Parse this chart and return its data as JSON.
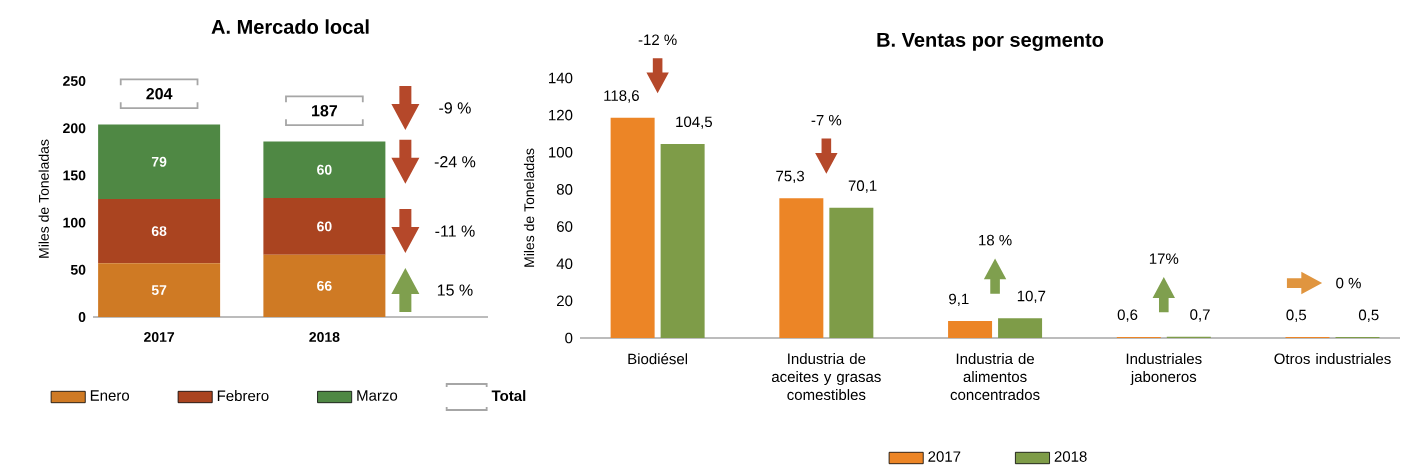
{
  "chart_data": [
    {
      "type": "bar",
      "title": "A. Mercado local",
      "ylabel": "Miles de Toneladas",
      "categories": [
        "2017",
        "2018"
      ],
      "stacked": true,
      "series": [
        {
          "name": "Enero",
          "color": "#CF7A24",
          "values": [
            57,
            66
          ]
        },
        {
          "name": "Febrero",
          "color": "#AA4420",
          "values": [
            68,
            60
          ]
        },
        {
          "name": "Marzo",
          "color": "#4F8844",
          "values": [
            79,
            60
          ]
        }
      ],
      "ylim": [
        0,
        250
      ],
      "yticks": [
        0,
        50,
        100,
        150,
        200,
        250
      ],
      "data_labels": true,
      "totals": [
        "204",
        "187"
      ],
      "legend": "bottom",
      "annotations": [
        "Total",
        "-9 %",
        "-24 %",
        "-11 %",
        "15 %"
      ]
    },
    {
      "type": "bar",
      "title": "B. Ventas por segmento",
      "ylabel": "Miles de Toneladas",
      "categories": [
        "Biodiésel",
        "Industria de aceites y grasas comestibles",
        "Industria de alimentos concentrados",
        "Industriales jaboneros",
        "Otros industriales"
      ],
      "series": [
        {
          "name": "2017",
          "color": "#EC8526",
          "values": [
            118.6,
            75.3,
            9.1,
            0.6,
            0.5
          ],
          "value_labels": [
            "118,6",
            "75,3",
            "9,1",
            "0,6",
            "0,5"
          ]
        },
        {
          "name": "2018",
          "color": "#7E9C48",
          "values": [
            104.5,
            70.1,
            10.7,
            0.7,
            0.5
          ],
          "value_labels": [
            "104,5",
            "70,1",
            "10,7",
            "0,7",
            "0,5"
          ]
        }
      ],
      "ylim": [
        0,
        140
      ],
      "yticks": [
        0,
        20,
        40,
        60,
        80,
        100,
        120,
        140
      ],
      "legend": "bottom",
      "annotations": [
        "-12 %",
        "-7 %",
        "18 %",
        "17%",
        "0 %"
      ]
    }
  ]
}
